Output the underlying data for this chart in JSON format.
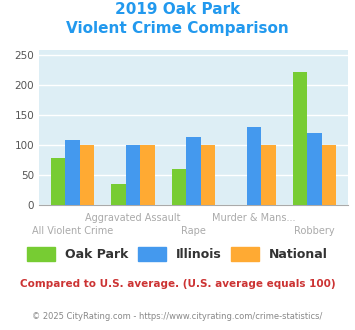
{
  "title_line1": "2019 Oak Park",
  "title_line2": "Violent Crime Comparison",
  "categories": [
    "All Violent Crime",
    "Aggravated Assault",
    "Rape",
    "Murder & Mans...",
    "Robbery"
  ],
  "series": {
    "Oak Park": [
      78,
      35,
      60,
      0,
      223
    ],
    "Illinois": [
      108,
      100,
      113,
      130,
      120
    ],
    "National": [
      100,
      100,
      100,
      100,
      100
    ]
  },
  "colors": {
    "Oak Park": "#77cc33",
    "Illinois": "#4499ee",
    "National": "#ffaa33"
  },
  "ylim": [
    0,
    260
  ],
  "yticks": [
    0,
    50,
    100,
    150,
    200,
    250
  ],
  "bg_color": "#ddeef5",
  "grid_color": "#ffffff",
  "title_color": "#2299ee",
  "footer_text": "Compared to U.S. average. (U.S. average equals 100)",
  "footer_color": "#cc3333",
  "copyright_text": "© 2025 CityRating.com - https://www.cityrating.com/crime-statistics/",
  "copyright_color": "#888888",
  "xlabels_top": [
    "",
    "Aggravated Assault",
    "",
    "Murder & Mans...",
    ""
  ],
  "xlabels_bot": [
    "All Violent Crime",
    "",
    "Rape",
    "",
    "Robbery"
  ],
  "xlabel_color": "#aaaaaa"
}
